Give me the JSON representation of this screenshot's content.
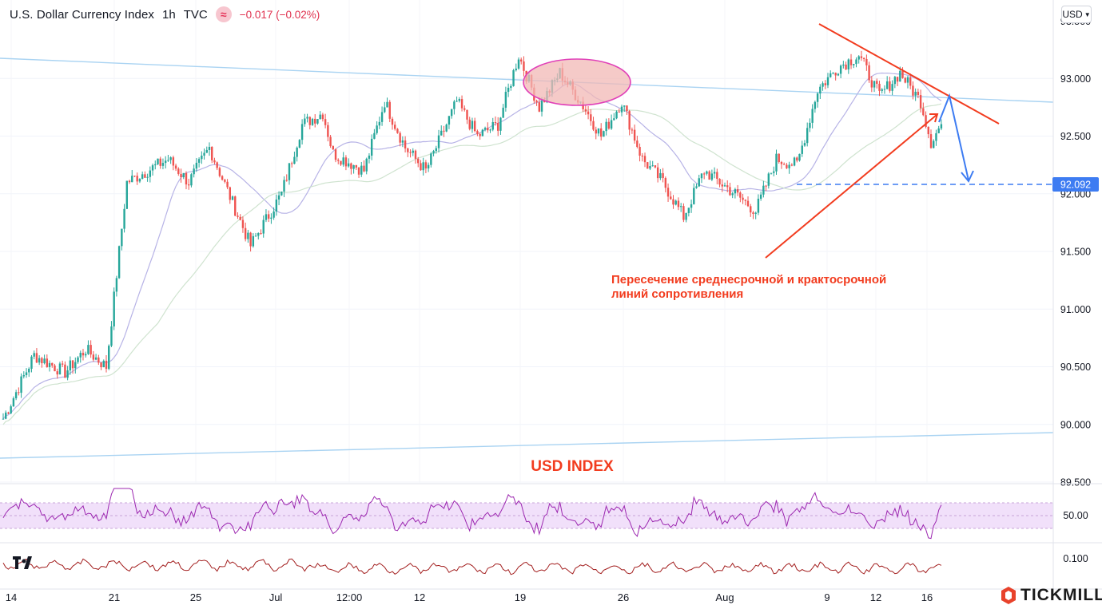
{
  "header": {
    "symbol": "U.S. Dollar Currency Index",
    "interval": "1h",
    "exchange": "TVC",
    "change": "−0.017 (−0.02%)",
    "currency": "USD",
    "currency_chevron_icon": "chevron-down-icon",
    "compare_icon": "approx-icon"
  },
  "colors": {
    "up": "#26a69a",
    "down": "#ef5350",
    "annotation": "#f23c1f",
    "projection": "#3d7cf2",
    "trend_light": "#a9d3f2",
    "rsi": "#9c27b0",
    "rsi_band": "#f1e0fa",
    "lower": "#a31f1f"
  },
  "annotation": {
    "text_line1": "Пересечение среднесрочной и крактосрочной",
    "text_line2": "линий сопротивления",
    "title": "USD INDEX",
    "target_label": "92.092"
  },
  "chart_data": {
    "type": "candlestick",
    "symbol": "U.S. Dollar Currency Index",
    "interval": "1h",
    "ylim": [
      89.5,
      93.5
    ],
    "y_ticks": [
      "93.000",
      "92.500",
      "92.000",
      "91.500",
      "91.000",
      "90.500",
      "90.000",
      "89.500"
    ],
    "y_ticks_partial": [
      "93.500"
    ],
    "x_ticks": [
      "14",
      "21",
      "25",
      "Jul",
      "12:00",
      "12",
      "19",
      "26",
      "Aug",
      "9",
      "12",
      "16"
    ],
    "price_path": [
      [
        0,
        90.05
      ],
      [
        3,
        90.6
      ],
      [
        6,
        90.45
      ],
      [
        8,
        90.65
      ],
      [
        10,
        90.5
      ],
      [
        12,
        92.1
      ],
      [
        16,
        92.3
      ],
      [
        18,
        92.1
      ],
      [
        20,
        92.4
      ],
      [
        24,
        91.55
      ],
      [
        27,
        92.0
      ],
      [
        29,
        92.6
      ],
      [
        31,
        92.7
      ],
      [
        32,
        92.35
      ],
      [
        35,
        92.2
      ],
      [
        37,
        92.8
      ],
      [
        39,
        92.4
      ],
      [
        41,
        92.2
      ],
      [
        44,
        92.8
      ],
      [
        46,
        92.5
      ],
      [
        48,
        92.6
      ],
      [
        50,
        93.2
      ],
      [
        52,
        92.75
      ],
      [
        54,
        93.05
      ],
      [
        56,
        92.8
      ],
      [
        58,
        92.5
      ],
      [
        60,
        92.8
      ],
      [
        62,
        92.3
      ],
      [
        64,
        92.1
      ],
      [
        66,
        91.8
      ],
      [
        68,
        92.2
      ],
      [
        71,
        92.0
      ],
      [
        73,
        91.85
      ],
      [
        75,
        92.3
      ],
      [
        77,
        92.25
      ],
      [
        79,
        92.9
      ],
      [
        81,
        93.1
      ],
      [
        83,
        93.2
      ],
      [
        85,
        92.85
      ],
      [
        87,
        93.05
      ],
      [
        89,
        92.8
      ],
      [
        90,
        92.45
      ],
      [
        91,
        92.6
      ]
    ],
    "current_price": 92.6,
    "target_price": 92.092,
    "lines": [
      {
        "kind": "long-term resistance",
        "from": [
          0,
          93.2
        ],
        "to": [
          100,
          92.8
        ]
      },
      {
        "kind": "long-term support",
        "from": [
          0,
          88.7
        ],
        "to": [
          100,
          88.95
        ]
      },
      {
        "kind": "short-term resistance",
        "from": [
          79,
          93.5
        ],
        "to": [
          96,
          92.55
        ]
      },
      {
        "kind": "rising trend",
        "from": [
          74,
          91.45
        ],
        "to": [
          90,
          92.75
        ]
      }
    ],
    "indicators": [
      {
        "name": "RSI",
        "tick": "50.00",
        "band": [
          30,
          70
        ]
      },
      {
        "name": "oscillator",
        "tick": "0.100"
      }
    ]
  }
}
